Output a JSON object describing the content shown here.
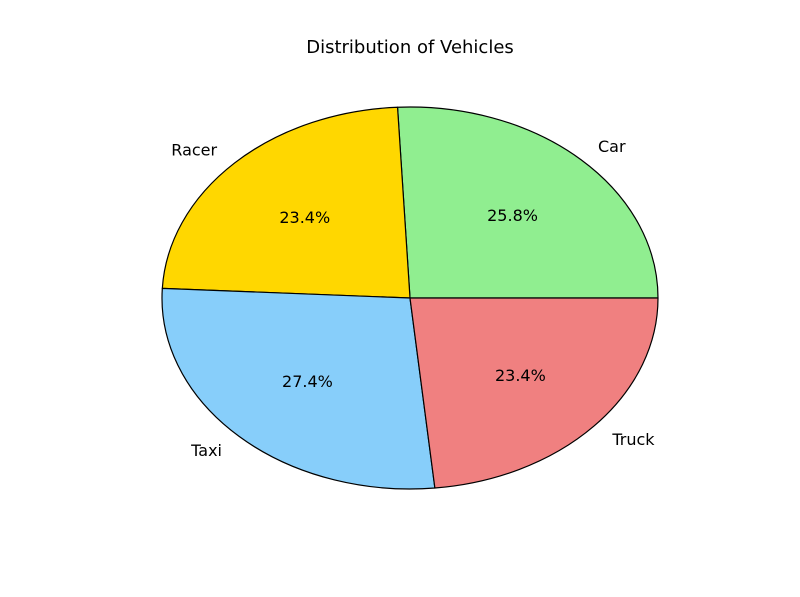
{
  "chart_data": {
    "type": "pie",
    "title": "Distribution of Vehicles",
    "categories": [
      "Car",
      "Racer",
      "Taxi",
      "Truck"
    ],
    "values": [
      25.8,
      23.4,
      27.4,
      23.4
    ],
    "percent_labels": [
      "25.8%",
      "23.4%",
      "27.4%",
      "23.4%"
    ],
    "colors": [
      "#90ee90",
      "#ffd700",
      "#87cefa",
      "#f08080"
    ],
    "start_angle_deg": 0,
    "direction": "counterclockwise",
    "edge_color": "#000000"
  }
}
